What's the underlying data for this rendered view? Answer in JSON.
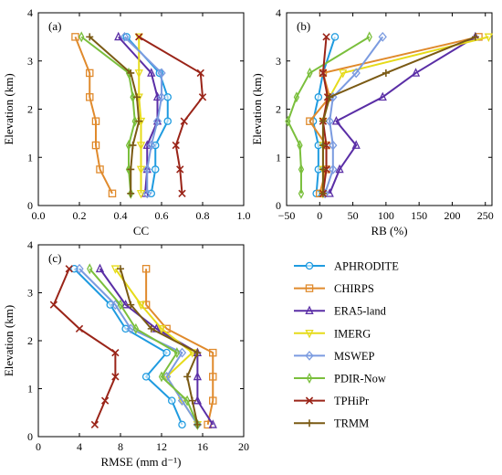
{
  "series_meta": [
    {
      "name": "APHRODITE",
      "color": "#1f9be0",
      "marker": "circle"
    },
    {
      "name": "CHIRPS",
      "color": "#e08a2c",
      "marker": "square"
    },
    {
      "name": "ERA5-land",
      "color": "#5a2ea6",
      "marker": "triangle-up"
    },
    {
      "name": "IMERG",
      "color": "#e6db1a",
      "marker": "triangle-down"
    },
    {
      "name": "MSWEP",
      "color": "#7b9be0",
      "marker": "diamond"
    },
    {
      "name": "PDIR-Now",
      "color": "#7abf3c",
      "marker": "thin-diamond"
    },
    {
      "name": "TPHiPr",
      "color": "#9a2418",
      "marker": "x"
    },
    {
      "name": "TRMM",
      "color": "#7a5a14",
      "marker": "plus"
    }
  ],
  "chart_data": [
    {
      "type": "line",
      "panel": "(a)",
      "xlabel": "CC",
      "ylabel": "Elevation (km)",
      "xlim": [
        0,
        1.0
      ],
      "ylim": [
        0,
        4
      ],
      "xticks": [
        "0.0",
        "0.2",
        "0.4",
        "0.6",
        "0.8",
        "1.0"
      ],
      "yticks": [
        "0",
        "1",
        "2",
        "3",
        "4"
      ],
      "y": [
        0.25,
        0.75,
        1.25,
        1.75,
        2.25,
        2.75,
        3.5
      ],
      "series": [
        {
          "name": "APHRODITE",
          "x": [
            0.55,
            0.57,
            0.57,
            0.63,
            0.63,
            0.59,
            0.43
          ]
        },
        {
          "name": "CHIRPS",
          "x": [
            0.36,
            0.3,
            0.28,
            0.28,
            0.25,
            0.25,
            0.18
          ]
        },
        {
          "name": "ERA5-land",
          "x": [
            0.52,
            0.53,
            0.53,
            0.58,
            0.58,
            0.55,
            0.39
          ]
        },
        {
          "name": "IMERG",
          "x": [
            0.5,
            0.5,
            0.5,
            0.5,
            0.49,
            0.49,
            0.49
          ]
        },
        {
          "name": "MSWEP",
          "x": [
            0.53,
            0.53,
            0.55,
            0.58,
            0.6,
            0.6,
            0.42
          ]
        },
        {
          "name": "PDIR-Now",
          "x": [
            0.45,
            0.44,
            0.44,
            0.47,
            0.46,
            0.44,
            0.21
          ]
        },
        {
          "name": "TPHiPr",
          "x": [
            0.7,
            0.69,
            0.67,
            0.71,
            0.8,
            0.79,
            0.49
          ]
        },
        {
          "name": "TRMM",
          "x": [
            0.45,
            0.45,
            0.46,
            0.49,
            0.48,
            0.45,
            0.25
          ]
        }
      ]
    },
    {
      "type": "line",
      "panel": "(b)",
      "xlabel": "RB (%)",
      "ylabel": "Elevation (km)",
      "xlim": [
        -50,
        260
      ],
      "ylim": [
        0,
        4
      ],
      "xticks": [
        "−50",
        "0",
        "50",
        "100",
        "150",
        "200",
        "250"
      ],
      "yticks": [
        "0",
        "1",
        "2",
        "3",
        "4"
      ],
      "y": [
        0.25,
        0.75,
        1.25,
        1.75,
        2.25,
        2.75,
        3.5
      ],
      "series": [
        {
          "name": "APHRODITE",
          "x": [
            -5,
            -2,
            -2,
            -10,
            -2,
            5,
            23
          ]
        },
        {
          "name": "CHIRPS",
          "x": [
            0,
            10,
            10,
            -15,
            15,
            5,
            240
          ]
        },
        {
          "name": "ERA5-land",
          "x": [
            15,
            30,
            55,
            25,
            95,
            145,
            235
          ]
        },
        {
          "name": "IMERG",
          "x": [
            5,
            5,
            5,
            5,
            15,
            35,
            255
          ]
        },
        {
          "name": "MSWEP",
          "x": [
            8,
            20,
            20,
            15,
            20,
            55,
            95
          ]
        },
        {
          "name": "PDIR-Now",
          "x": [
            -28,
            -28,
            -30,
            -48,
            -35,
            -15,
            75
          ]
        },
        {
          "name": "TPHiPr",
          "x": [
            5,
            10,
            10,
            5,
            12,
            5,
            10
          ]
        },
        {
          "name": "TRMM",
          "x": [
            5,
            5,
            5,
            5,
            15,
            100,
            235
          ]
        }
      ]
    },
    {
      "type": "line",
      "panel": "(c)",
      "xlabel": "RMSE (mm d⁻¹)",
      "ylabel": "Elevation (km)",
      "xlim": [
        0,
        20
      ],
      "ylim": [
        0,
        4
      ],
      "xticks": [
        "0",
        "4",
        "8",
        "12",
        "16",
        "20"
      ],
      "yticks": [
        "0",
        "1",
        "2",
        "3",
        "4"
      ],
      "y": [
        0.25,
        0.75,
        1.25,
        1.75,
        2.25,
        2.75,
        3.5
      ],
      "series": [
        {
          "name": "APHRODITE",
          "x": [
            14.0,
            13.0,
            10.5,
            12.5,
            8.5,
            7.0,
            3.5
          ]
        },
        {
          "name": "CHIRPS",
          "x": [
            16.5,
            17.0,
            17.0,
            17.0,
            12.5,
            10.5,
            10.5
          ]
        },
        {
          "name": "ERA5-land",
          "x": [
            17.0,
            15.5,
            15.5,
            15.5,
            11.5,
            8.5,
            6.0
          ]
        },
        {
          "name": "IMERG",
          "x": [
            15.5,
            14.0,
            12.5,
            15.0,
            12.0,
            10.0,
            7.5
          ]
        },
        {
          "name": "MSWEP",
          "x": [
            15.5,
            14.0,
            12.5,
            14.0,
            9.0,
            7.5,
            4.0
          ]
        },
        {
          "name": "PDIR-Now",
          "x": [
            15.5,
            14.5,
            12.0,
            13.5,
            9.5,
            8.0,
            5.0
          ]
        },
        {
          "name": "TPHiPr",
          "x": [
            5.5,
            6.5,
            7.5,
            7.5,
            4.0,
            1.5,
            3.0
          ]
        },
        {
          "name": "TRMM",
          "x": [
            15.5,
            15.0,
            14.5,
            15.5,
            11.0,
            9.0,
            8.0
          ]
        }
      ]
    }
  ]
}
